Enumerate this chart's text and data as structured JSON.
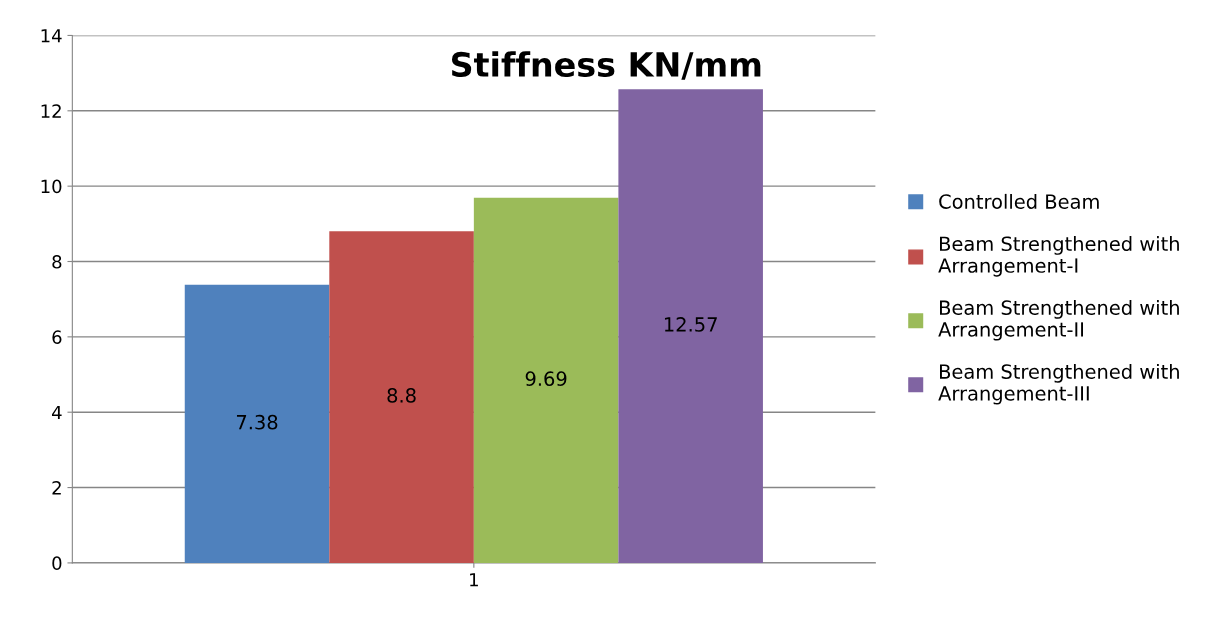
{
  "chart_data": {
    "type": "bar",
    "title": "Stiffness KN/mm",
    "categories": [
      "1"
    ],
    "series": [
      {
        "name": "Controlled Beam",
        "color": "#4f81bd",
        "values": [
          7.38
        ]
      },
      {
        "name": "Beam Strengthened with Arrangement-I",
        "color": "#c0504d",
        "values": [
          8.8
        ]
      },
      {
        "name": "Beam Strengthened with Arrangement-II",
        "color": "#9bbb59",
        "values": [
          9.69
        ]
      },
      {
        "name": "Beam Strengthened with Arrangement-III",
        "color": "#8064a2",
        "values": [
          12.57
        ]
      }
    ],
    "ylim": [
      0,
      14
    ],
    "yticks": [
      0,
      2,
      4,
      6,
      8,
      10,
      12,
      14
    ],
    "grid": "y",
    "legend": "right",
    "data_labels": true
  }
}
